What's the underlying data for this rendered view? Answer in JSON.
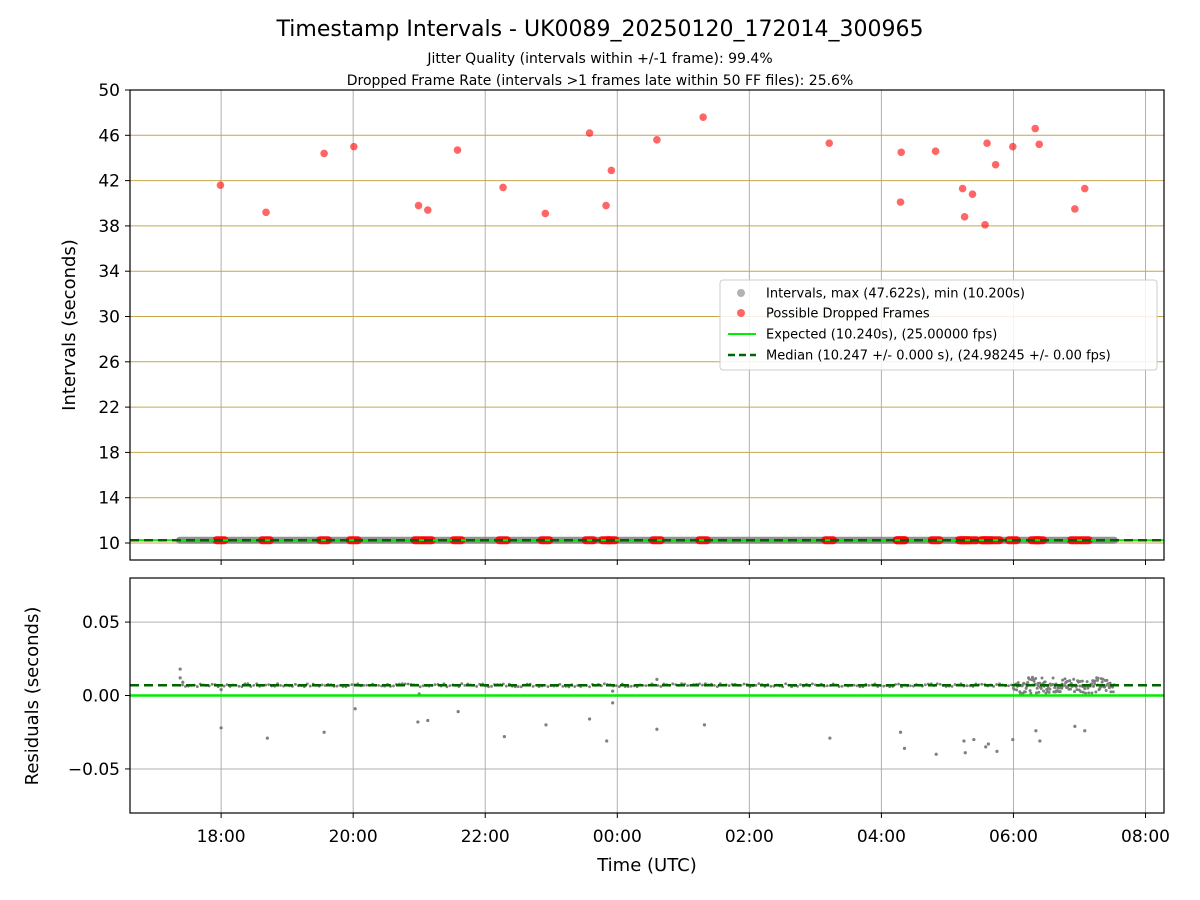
{
  "title": "Timestamp Intervals - UK0089_20250120_172014_300965",
  "subtitle_1": "Jitter Quality (intervals within +/-1 frame): 99.4%",
  "subtitle_2": "Dropped Frame Rate (intervals >1 frames late within 50 FF files): 25.6%",
  "colors": {
    "intervals": "#7f7f7f",
    "dropped": "#ff0000",
    "expected": "#00ee00",
    "median": "#006400",
    "hgrid_top": "#c8a64b",
    "grid": "#b0b0b0"
  },
  "chart_data": [
    {
      "type": "scatter",
      "panel": "intervals",
      "ylabel": "Intervals (seconds)",
      "xlabel": "",
      "ylim": [
        8.5,
        50
      ],
      "yticks": [
        10,
        14,
        18,
        22,
        26,
        30,
        34,
        38,
        42,
        46,
        50
      ],
      "xticks": [
        "18:00",
        "20:00",
        "22:00",
        "00:00",
        "02:00",
        "04:00",
        "06:00",
        "08:00"
      ],
      "xlim_hours": [
        16.62,
        32.28
      ],
      "grid": "x and y",
      "legend_position": "center-right",
      "legend": [
        "Intervals, max (47.622s), min (10.200s)",
        "Possible Dropped Frames",
        "Expected (10.240s), (25.00000 fps)",
        "Median (10.247 +/- 0.000 s), (24.98245 +/- 0.00 fps)"
      ],
      "series": [
        {
          "name": "Intervals, max (47.622s), min (10.200s)",
          "kind": "scatter-band",
          "x_range_hours": [
            17.37,
            31.53
          ],
          "y": 10.247
        },
        {
          "name": "Possible Dropped Frames",
          "kind": "scatter",
          "points": [
            [
              17.99,
              41.6
            ],
            [
              18.68,
              39.2
            ],
            [
              19.56,
              44.4
            ],
            [
              20.01,
              45.0
            ],
            [
              20.99,
              39.8
            ],
            [
              21.13,
              39.4
            ],
            [
              21.58,
              44.7
            ],
            [
              22.27,
              41.4
            ],
            [
              22.91,
              39.1
            ],
            [
              23.58,
              46.2
            ],
            [
              23.83,
              39.8
            ],
            [
              23.91,
              42.9
            ],
            [
              24.6,
              45.6
            ],
            [
              25.3,
              47.6
            ],
            [
              27.21,
              45.3
            ],
            [
              28.29,
              40.1
            ],
            [
              28.3,
              44.5
            ],
            [
              28.82,
              44.6
            ],
            [
              29.23,
              41.3
            ],
            [
              29.26,
              38.8
            ],
            [
              29.38,
              40.8
            ],
            [
              29.57,
              38.1
            ],
            [
              29.6,
              45.3
            ],
            [
              29.73,
              43.4
            ],
            [
              29.99,
              45.0
            ],
            [
              30.33,
              46.6
            ],
            [
              30.39,
              45.2
            ],
            [
              30.93,
              39.5
            ],
            [
              31.08,
              41.3
            ]
          ],
          "baseline_markers_hours": [
            17.99,
            18.68,
            19.56,
            20.01,
            20.99,
            21.13,
            21.58,
            22.27,
            22.91,
            23.58,
            23.83,
            23.91,
            24.6,
            25.3,
            27.21,
            28.29,
            28.3,
            28.82,
            29.23,
            29.26,
            29.38,
            29.57,
            29.6,
            29.73,
            29.99,
            30.33,
            30.39,
            30.93,
            31.08
          ]
        },
        {
          "name": "Expected (10.240s), (25.00000 fps)",
          "kind": "hline",
          "y": 10.24
        },
        {
          "name": "Median (10.247 +/- 0.000 s), (24.98245 +/- 0.00 fps)",
          "kind": "hline",
          "y": 10.247
        }
      ]
    },
    {
      "type": "scatter",
      "panel": "residuals",
      "ylabel": "Residuals (seconds)",
      "xlabel": "Time (UTC)",
      "ylim": [
        -0.08,
        0.08
      ],
      "yticks": [
        0.05,
        0.0,
        -0.05
      ],
      "ytick_labels": [
        "0.05",
        "0.00",
        "−0.05"
      ],
      "xticks": [
        "18:00",
        "20:00",
        "22:00",
        "00:00",
        "02:00",
        "04:00",
        "06:00",
        "08:00"
      ],
      "xlim_hours": [
        16.62,
        32.28
      ],
      "grid": "x and y",
      "series": [
        {
          "name": "expected",
          "kind": "hline",
          "y": 0.0
        },
        {
          "name": "median",
          "kind": "hline",
          "y": 0.007
        },
        {
          "name": "residuals",
          "kind": "scatter",
          "band_y": 0.007,
          "band_x_range_hours": [
            17.37,
            31.53
          ],
          "dense_x_range_hours": [
            30.0,
            31.53
          ],
          "outliers": [
            [
              17.38,
              0.018
            ],
            [
              17.38,
              0.012
            ],
            [
              17.42,
              0.009
            ],
            [
              18.0,
              -0.022
            ],
            [
              18.0,
              0.004
            ],
            [
              18.7,
              -0.029
            ],
            [
              19.56,
              -0.025
            ],
            [
              20.03,
              -0.009
            ],
            [
              20.98,
              -0.018
            ],
            [
              21.0,
              0.001
            ],
            [
              21.13,
              -0.017
            ],
            [
              21.59,
              -0.011
            ],
            [
              22.29,
              -0.028
            ],
            [
              22.92,
              -0.02
            ],
            [
              23.58,
              -0.016
            ],
            [
              23.84,
              -0.031
            ],
            [
              23.93,
              -0.005
            ],
            [
              23.93,
              0.003
            ],
            [
              24.6,
              -0.023
            ],
            [
              24.6,
              0.011
            ],
            [
              25.32,
              -0.02
            ],
            [
              27.22,
              -0.029
            ],
            [
              28.29,
              -0.025
            ],
            [
              28.35,
              -0.036
            ],
            [
              28.83,
              -0.04
            ],
            [
              29.25,
              -0.031
            ],
            [
              29.27,
              -0.039
            ],
            [
              29.4,
              -0.03
            ],
            [
              29.58,
              -0.035
            ],
            [
              29.62,
              -0.033
            ],
            [
              29.75,
              -0.038
            ],
            [
              29.99,
              -0.03
            ],
            [
              30.34,
              -0.024
            ],
            [
              30.4,
              -0.031
            ],
            [
              30.93,
              -0.021
            ],
            [
              31.08,
              -0.024
            ]
          ]
        }
      ]
    }
  ]
}
